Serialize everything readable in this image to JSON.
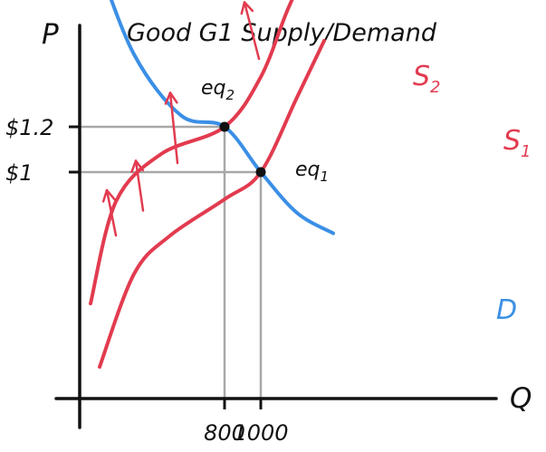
{
  "chart_data": {
    "type": "line",
    "title": "Good G1 Supply/Demand",
    "xlabel": "Q",
    "ylabel": "P",
    "x_ticks": [
      "800",
      "1000"
    ],
    "y_ticks": [
      "$1.2",
      "$1"
    ],
    "xlim": [
      0,
      1400
    ],
    "ylim": [
      0,
      2.2
    ],
    "colors": {
      "demand": "#3b8fe6",
      "supply": "#e23b4f",
      "guide": "#a8a8a8",
      "axis": "#111111",
      "point": "#111111"
    },
    "series": [
      {
        "name": "D",
        "color": "#3b8fe6",
        "points": [
          [
            90,
            1.95
          ],
          [
            300,
            1.52
          ],
          [
            560,
            1.25
          ],
          [
            800,
            1.2
          ],
          [
            1000,
            1.0
          ],
          [
            1200,
            0.82
          ],
          [
            1400,
            0.73
          ]
        ]
      },
      {
        "name": "S1",
        "color": "#e23b4f",
        "points": [
          [
            110,
            0.14
          ],
          [
            300,
            0.55
          ],
          [
            500,
            0.72
          ],
          [
            800,
            0.88
          ],
          [
            1000,
            1.0
          ],
          [
            1200,
            1.33
          ],
          [
            1350,
            1.58
          ]
        ]
      },
      {
        "name": "S2",
        "color": "#e23b4f",
        "points": [
          [
            60,
            0.42
          ],
          [
            200,
            0.87
          ],
          [
            450,
            1.08
          ],
          [
            800,
            1.2
          ],
          [
            1000,
            1.42
          ],
          [
            1150,
            1.72
          ],
          [
            1300,
            1.98
          ]
        ]
      }
    ],
    "points": [
      {
        "label": "eq2",
        "x": 800,
        "y": 1.2
      },
      {
        "label": "eq1",
        "x": 1000,
        "y": 1.0
      }
    ],
    "arrows": [
      {
        "from": [
          200,
          0.72
        ],
        "to": [
          150,
          0.92
        ]
      },
      {
        "from": [
          350,
          0.83
        ],
        "to": [
          310,
          1.05
        ]
      },
      {
        "from": [
          540,
          1.04
        ],
        "to": [
          500,
          1.35
        ]
      },
      {
        "from": [
          990,
          1.5
        ],
        "to": [
          910,
          1.75
        ]
      }
    ]
  }
}
